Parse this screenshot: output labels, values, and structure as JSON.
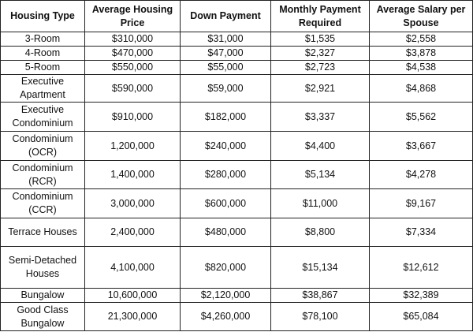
{
  "table": {
    "header": [
      "Housing Type",
      "Average Housing Price",
      "Down Payment",
      "Monthly Payment Required",
      "Average Salary per Spouse"
    ],
    "rows": [
      [
        "3-Room",
        "$310,000",
        "$31,000",
        "$1,535",
        "$2,558"
      ],
      [
        "4-Room",
        "$470,000",
        "$47,000",
        "$2,327",
        "$3,878"
      ],
      [
        "5-Room",
        "$550,000",
        "$55,000",
        "$2,723",
        "$4,538"
      ],
      [
        "Executive Apartment",
        "$590,000",
        "$59,000",
        "$2,921",
        "$4,868"
      ],
      [
        "Executive Condominium",
        "$910,000",
        "$182,000",
        "$3,337",
        "$5,562"
      ],
      [
        "Condominium (OCR)",
        "1,200,000",
        "$240,000",
        "$4,400",
        "$3,667"
      ],
      [
        "Condominium (RCR)",
        "1,400,000",
        "$280,000",
        "$5,134",
        "$4,278"
      ],
      [
        "Condominium (CCR)",
        "3,000,000",
        "$600,000",
        "$11,000",
        "$9,167"
      ],
      [
        "Terrace Houses",
        "2,400,000",
        "$480,000",
        "$8,800",
        "$7,334"
      ],
      [
        "Semi-Detached Houses",
        "4,100,000",
        "$820,000",
        "$15,134",
        "$12,612"
      ],
      [
        "Bungalow",
        "10,600,000",
        "$2,120,000",
        "$38,867",
        "$32,389"
      ],
      [
        "Good Class Bungalow",
        "21,300,000",
        "$4,260,000",
        "$78,100",
        "$65,084"
      ]
    ]
  }
}
